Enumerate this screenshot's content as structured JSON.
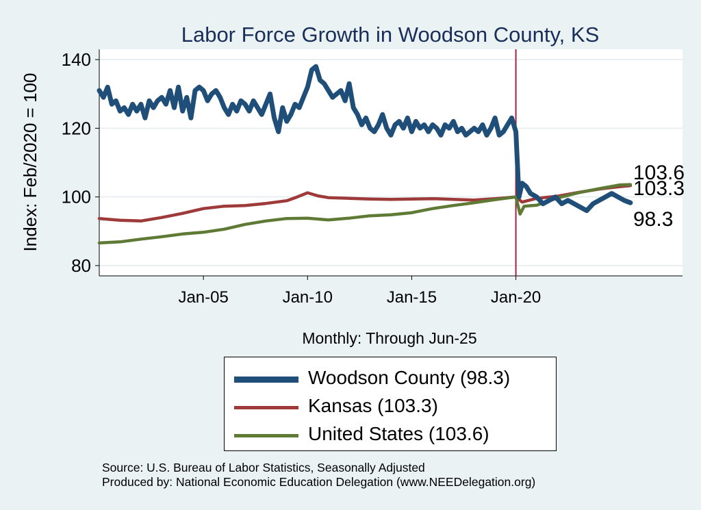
{
  "chart_data": {
    "type": "line",
    "title": "Labor Force Growth in Woodson  County, KS",
    "xlabel": "Monthly: Through Jun-25",
    "ylabel": "Index: Feb/2020 = 100",
    "xlim": [
      2000.0,
      2028.0
    ],
    "ylim": [
      77,
      143
    ],
    "xticks": [
      2005,
      2010,
      2015,
      2020
    ],
    "xtick_labels": [
      "Jan-05",
      "Jan-10",
      "Jan-15",
      "Jan-20"
    ],
    "yticks": [
      80,
      100,
      120,
      140
    ],
    "ytick_labels": [
      "80",
      "100",
      "120",
      "140"
    ],
    "grid": true,
    "reference_line_x": 2020.0,
    "reference_line_color": "#a9203e",
    "end_labels": [
      "103.6",
      "103.3",
      "98.3"
    ],
    "series": [
      {
        "name": "Woodson  County",
        "legend": "Woodson  County (98.3)",
        "color": "#1f4e79",
        "points": [
          [
            2000.0,
            131
          ],
          [
            2000.2,
            129
          ],
          [
            2000.4,
            132
          ],
          [
            2000.6,
            127
          ],
          [
            2000.8,
            128
          ],
          [
            2001.0,
            125
          ],
          [
            2001.2,
            126
          ],
          [
            2001.4,
            124
          ],
          [
            2001.6,
            127
          ],
          [
            2001.8,
            125
          ],
          [
            2002.0,
            127
          ],
          [
            2002.2,
            123
          ],
          [
            2002.4,
            128
          ],
          [
            2002.6,
            126
          ],
          [
            2002.8,
            128
          ],
          [
            2003.0,
            129
          ],
          [
            2003.2,
            127
          ],
          [
            2003.4,
            131
          ],
          [
            2003.6,
            126
          ],
          [
            2003.8,
            132
          ],
          [
            2004.0,
            125
          ],
          [
            2004.2,
            129
          ],
          [
            2004.4,
            123
          ],
          [
            2004.6,
            131
          ],
          [
            2004.8,
            132
          ],
          [
            2005.0,
            131
          ],
          [
            2005.2,
            128
          ],
          [
            2005.4,
            130
          ],
          [
            2005.6,
            131
          ],
          [
            2005.8,
            129
          ],
          [
            2006.0,
            126
          ],
          [
            2006.2,
            124
          ],
          [
            2006.4,
            127
          ],
          [
            2006.6,
            125
          ],
          [
            2006.8,
            128
          ],
          [
            2007.0,
            127
          ],
          [
            2007.2,
            125
          ],
          [
            2007.4,
            128
          ],
          [
            2007.6,
            126
          ],
          [
            2007.8,
            124
          ],
          [
            2008.0,
            127
          ],
          [
            2008.2,
            130
          ],
          [
            2008.4,
            123
          ],
          [
            2008.6,
            119
          ],
          [
            2008.8,
            126
          ],
          [
            2009.0,
            122
          ],
          [
            2009.2,
            124
          ],
          [
            2009.4,
            127
          ],
          [
            2009.6,
            126
          ],
          [
            2009.8,
            129
          ],
          [
            2010.0,
            132
          ],
          [
            2010.2,
            137
          ],
          [
            2010.4,
            138
          ],
          [
            2010.6,
            134
          ],
          [
            2010.8,
            133
          ],
          [
            2011.0,
            131
          ],
          [
            2011.2,
            129
          ],
          [
            2011.4,
            130
          ],
          [
            2011.6,
            131
          ],
          [
            2011.8,
            128
          ],
          [
            2012.0,
            133
          ],
          [
            2012.2,
            126
          ],
          [
            2012.4,
            124
          ],
          [
            2012.6,
            121
          ],
          [
            2012.8,
            123
          ],
          [
            2013.0,
            120
          ],
          [
            2013.2,
            119
          ],
          [
            2013.4,
            121
          ],
          [
            2013.6,
            124
          ],
          [
            2013.8,
            120
          ],
          [
            2014.0,
            118
          ],
          [
            2014.2,
            121
          ],
          [
            2014.4,
            122
          ],
          [
            2014.6,
            120
          ],
          [
            2014.8,
            123
          ],
          [
            2015.0,
            119
          ],
          [
            2015.2,
            122
          ],
          [
            2015.4,
            120
          ],
          [
            2015.6,
            121
          ],
          [
            2015.8,
            119
          ],
          [
            2016.0,
            121
          ],
          [
            2016.2,
            120
          ],
          [
            2016.4,
            118
          ],
          [
            2016.6,
            121
          ],
          [
            2016.8,
            120
          ],
          [
            2017.0,
            122
          ],
          [
            2017.2,
            119
          ],
          [
            2017.4,
            120
          ],
          [
            2017.6,
            118
          ],
          [
            2017.8,
            119
          ],
          [
            2018.0,
            120
          ],
          [
            2018.2,
            119
          ],
          [
            2018.4,
            121
          ],
          [
            2018.6,
            118
          ],
          [
            2018.8,
            120
          ],
          [
            2019.0,
            123
          ],
          [
            2019.2,
            118
          ],
          [
            2019.4,
            119
          ],
          [
            2019.6,
            121
          ],
          [
            2019.8,
            123
          ],
          [
            2020.0,
            119
          ],
          [
            2020.15,
            100
          ],
          [
            2020.3,
            104
          ],
          [
            2020.5,
            103
          ],
          [
            2020.7,
            101
          ],
          [
            2021.0,
            100
          ],
          [
            2021.3,
            98
          ],
          [
            2021.6,
            99
          ],
          [
            2021.9,
            100
          ],
          [
            2022.2,
            98
          ],
          [
            2022.5,
            99
          ],
          [
            2022.8,
            98
          ],
          [
            2023.1,
            97
          ],
          [
            2023.4,
            96
          ],
          [
            2023.7,
            98
          ],
          [
            2024.0,
            99
          ],
          [
            2024.3,
            100
          ],
          [
            2024.6,
            101
          ],
          [
            2024.9,
            100
          ],
          [
            2025.2,
            99
          ],
          [
            2025.5,
            98.3
          ]
        ]
      },
      {
        "name": "Kansas",
        "legend": "Kansas (103.3)",
        "color": "#9e3a3a",
        "points": [
          [
            2000.0,
            93.7
          ],
          [
            2001.0,
            93.2
          ],
          [
            2002.0,
            93.0
          ],
          [
            2003.0,
            94.0
          ],
          [
            2004.0,
            95.2
          ],
          [
            2005.0,
            96.6
          ],
          [
            2006.0,
            97.3
          ],
          [
            2007.0,
            97.5
          ],
          [
            2008.0,
            98.1
          ],
          [
            2009.0,
            98.9
          ],
          [
            2009.5,
            100.0
          ],
          [
            2010.0,
            101.2
          ],
          [
            2010.5,
            100.3
          ],
          [
            2011.0,
            99.8
          ],
          [
            2012.0,
            99.6
          ],
          [
            2013.0,
            99.4
          ],
          [
            2014.0,
            99.3
          ],
          [
            2015.0,
            99.4
          ],
          [
            2016.0,
            99.5
          ],
          [
            2017.0,
            99.3
          ],
          [
            2018.0,
            99.1
          ],
          [
            2019.0,
            99.5
          ],
          [
            2020.0,
            100.0
          ],
          [
            2020.3,
            98.5
          ],
          [
            2021.0,
            99.6
          ],
          [
            2022.0,
            100.2
          ],
          [
            2023.0,
            101.3
          ],
          [
            2024.0,
            102.3
          ],
          [
            2025.0,
            103.0
          ],
          [
            2025.5,
            103.3
          ]
        ]
      },
      {
        "name": "United States",
        "legend": "United States (103.6)",
        "color": "#5f7a34",
        "points": [
          [
            2000.0,
            86.6
          ],
          [
            2001.0,
            86.9
          ],
          [
            2002.0,
            87.7
          ],
          [
            2003.0,
            88.4
          ],
          [
            2004.0,
            89.2
          ],
          [
            2005.0,
            89.7
          ],
          [
            2006.0,
            90.6
          ],
          [
            2007.0,
            92.0
          ],
          [
            2008.0,
            93.0
          ],
          [
            2009.0,
            93.7
          ],
          [
            2010.0,
            93.8
          ],
          [
            2011.0,
            93.3
          ],
          [
            2012.0,
            93.8
          ],
          [
            2013.0,
            94.5
          ],
          [
            2014.0,
            94.8
          ],
          [
            2015.0,
            95.4
          ],
          [
            2016.0,
            96.6
          ],
          [
            2017.0,
            97.5
          ],
          [
            2018.0,
            98.3
          ],
          [
            2019.0,
            99.2
          ],
          [
            2020.0,
            100.0
          ],
          [
            2020.2,
            95.0
          ],
          [
            2020.4,
            97.3
          ],
          [
            2021.0,
            97.6
          ],
          [
            2022.0,
            99.7
          ],
          [
            2023.0,
            101.2
          ],
          [
            2024.0,
            102.4
          ],
          [
            2025.0,
            103.5
          ],
          [
            2025.5,
            103.6
          ]
        ]
      }
    ]
  },
  "source_text": "Source: U.S. Bureau of Labor Statistics, Seasonally Adjusted",
  "produced_text": "Produced by: National Economic Education Delegation (www.NEEDelegation.org)"
}
